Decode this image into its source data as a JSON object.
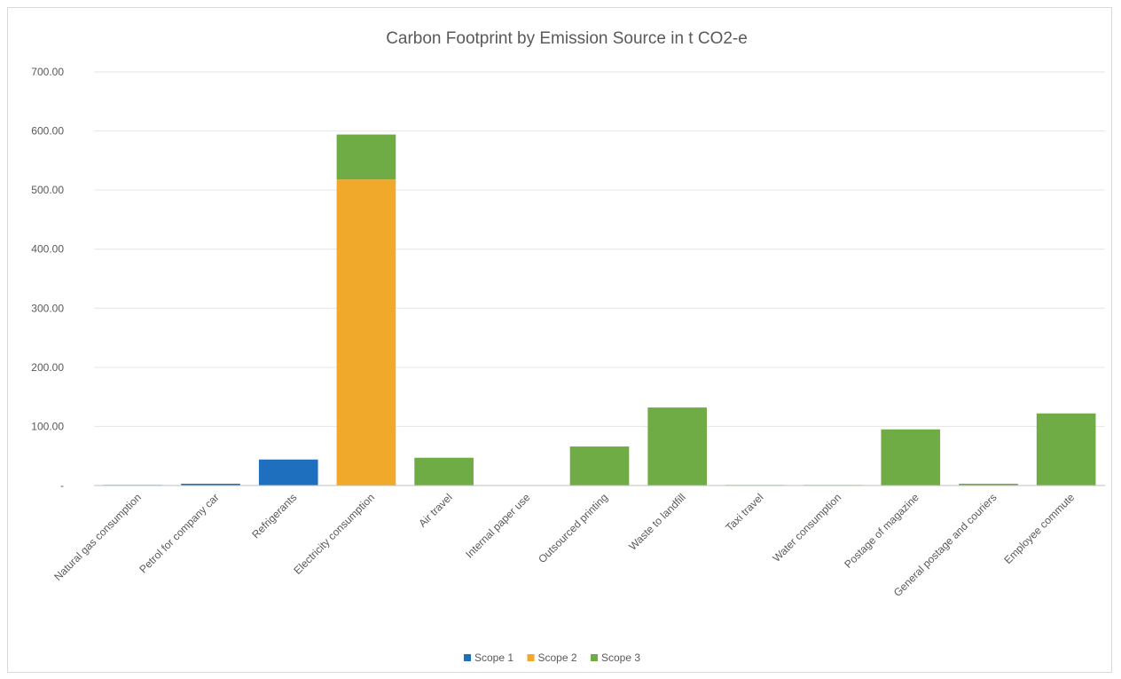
{
  "chart_data": {
    "type": "bar",
    "stacked": true,
    "title": "Carbon Footprint by Emission Source in t CO2-e",
    "xlabel": "",
    "ylabel": "",
    "ylim": [
      0,
      700
    ],
    "yticks": [
      0,
      100,
      200,
      300,
      400,
      500,
      600,
      700
    ],
    "ytick_labels": [
      "-",
      "100.00",
      "200.00",
      "300.00",
      "400.00",
      "500.00",
      "600.00",
      "700.00"
    ],
    "grid": true,
    "legend_position": "bottom",
    "categories": [
      "Natural gas consumption",
      "Petrol for company car",
      "Refrigerants",
      "Electricity consumption",
      "Air travel",
      "Internal paper use",
      "Outsourced printing",
      "Waste to landfill",
      "Taxi travel",
      "Water consumption",
      "Postage of magazine",
      "General postage and couriers",
      "Employee commute"
    ],
    "series": [
      {
        "name": "Scope 1",
        "color": "#1f6fbf",
        "values": [
          1,
          3,
          44,
          0,
          0,
          0,
          0,
          0,
          0,
          0,
          0,
          0,
          0
        ]
      },
      {
        "name": "Scope 2",
        "color": "#f0a92a",
        "values": [
          0,
          0,
          0,
          518,
          0,
          0,
          0,
          0,
          0,
          0,
          0,
          0,
          0
        ]
      },
      {
        "name": "Scope 3",
        "color": "#6fac46",
        "values": [
          0,
          0,
          0,
          76,
          47,
          0,
          66,
          132,
          1,
          1,
          95,
          3,
          122
        ]
      }
    ]
  }
}
